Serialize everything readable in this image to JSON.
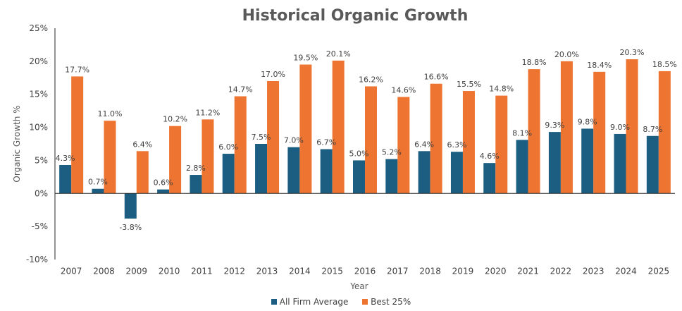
{
  "chart_data": {
    "type": "bar",
    "title": "Historical Organic Growth",
    "xlabel": "Year",
    "ylabel": "Organic Growth %",
    "categories": [
      "2007",
      "2008",
      "2009",
      "2010",
      "2011",
      "2012",
      "2013",
      "2014",
      "2015",
      "2016",
      "2017",
      "2018",
      "2019",
      "2020",
      "2021",
      "2022",
      "2023",
      "2024",
      "2025"
    ],
    "series": [
      {
        "name": "All Firm Average",
        "color": "#1b5e82",
        "values": [
          4.3,
          0.7,
          -3.8,
          0.6,
          2.8,
          6.0,
          7.5,
          7.0,
          6.7,
          5.0,
          5.2,
          6.4,
          6.3,
          4.6,
          8.1,
          9.3,
          9.8,
          9.0,
          8.7
        ],
        "labels": [
          "4.3%",
          "0.7%",
          "-3.8%",
          "0.6%",
          "2.8%",
          "6.0%",
          "7.5%",
          "7.0%",
          "6.7%",
          "5.0%",
          "5.2%",
          "6.4%",
          "6.3%",
          "4.6%",
          "8.1%",
          "9.3%",
          "9.8%",
          "9.0%",
          "8.7%"
        ]
      },
      {
        "name": "Best 25%",
        "color": "#ed7431",
        "values": [
          17.7,
          11.0,
          6.4,
          10.2,
          11.2,
          14.7,
          17.0,
          19.5,
          20.1,
          16.2,
          14.6,
          16.6,
          15.5,
          14.8,
          18.8,
          20.0,
          18.4,
          20.3,
          18.5
        ],
        "labels": [
          "17.7%",
          "11.0%",
          "6.4%",
          "10.2%",
          "11.2%",
          "14.7%",
          "17.0%",
          "19.5%",
          "20.1%",
          "16.2%",
          "14.6%",
          "16.6%",
          "15.5%",
          "14.8%",
          "18.8%",
          "20.0%",
          "18.4%",
          "20.3%",
          "18.5%"
        ]
      }
    ],
    "ylim": [
      -10,
      25
    ],
    "yticks": [
      -10,
      -5,
      0,
      5,
      10,
      15,
      20,
      25
    ],
    "ytick_labels": [
      "-10%",
      "-5%",
      "0%",
      "5%",
      "10%",
      "15%",
      "20%",
      "25%"
    ],
    "grid": false,
    "legend_position": "bottom"
  }
}
